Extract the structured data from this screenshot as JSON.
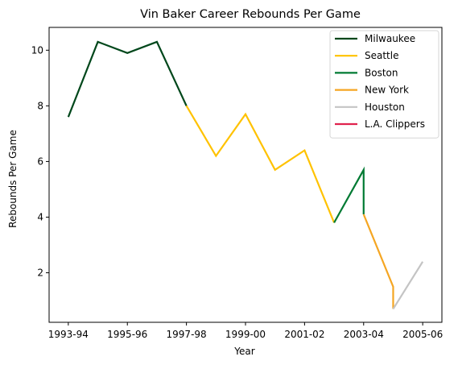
{
  "chart_data": {
    "type": "line",
    "title": "Vin Baker Career Rebounds Per Game",
    "xlabel": "Year",
    "ylabel": "Rebounds Per Game",
    "xlim": [
      -0.65,
      12.65
    ],
    "ylim": [
      0.22,
      10.82
    ],
    "x_ticks": [
      {
        "pos": 0,
        "label": "1993-94"
      },
      {
        "pos": 2,
        "label": "1995-96"
      },
      {
        "pos": 4,
        "label": "1997-98"
      },
      {
        "pos": 6,
        "label": "1999-00"
      },
      {
        "pos": 8,
        "label": "2001-02"
      },
      {
        "pos": 10,
        "label": "2003-04"
      },
      {
        "pos": 12,
        "label": "2005-06"
      }
    ],
    "y_ticks": [
      2,
      4,
      6,
      8,
      10
    ],
    "grid": false,
    "legend_position": "top-right",
    "series": [
      {
        "name": "Milwaukee",
        "color": "#00471B",
        "points": [
          [
            0,
            7.6
          ],
          [
            1,
            10.3
          ],
          [
            2,
            9.9
          ],
          [
            3,
            10.3
          ],
          [
            4,
            8.0
          ]
        ]
      },
      {
        "name": "Seattle",
        "color": "#FFC200",
        "points": [
          [
            4,
            8.0
          ],
          [
            5,
            6.2
          ],
          [
            6,
            7.7
          ],
          [
            7,
            5.7
          ],
          [
            8,
            6.4
          ],
          [
            9,
            3.8
          ]
        ]
      },
      {
        "name": "Boston",
        "color": "#007A33",
        "points": [
          [
            9,
            3.8
          ],
          [
            10,
            5.7
          ],
          [
            10,
            4.1
          ]
        ]
      },
      {
        "name": "New York",
        "color": "#F5A623",
        "points": [
          [
            10,
            4.1
          ],
          [
            11,
            1.5
          ],
          [
            11,
            0.7
          ]
        ]
      },
      {
        "name": "Houston",
        "color": "#C4C4C4",
        "points": [
          [
            11,
            0.7
          ],
          [
            12,
            2.4
          ]
        ]
      },
      {
        "name": "L.A. Clippers",
        "color": "#E0234E",
        "points": []
      }
    ]
  }
}
